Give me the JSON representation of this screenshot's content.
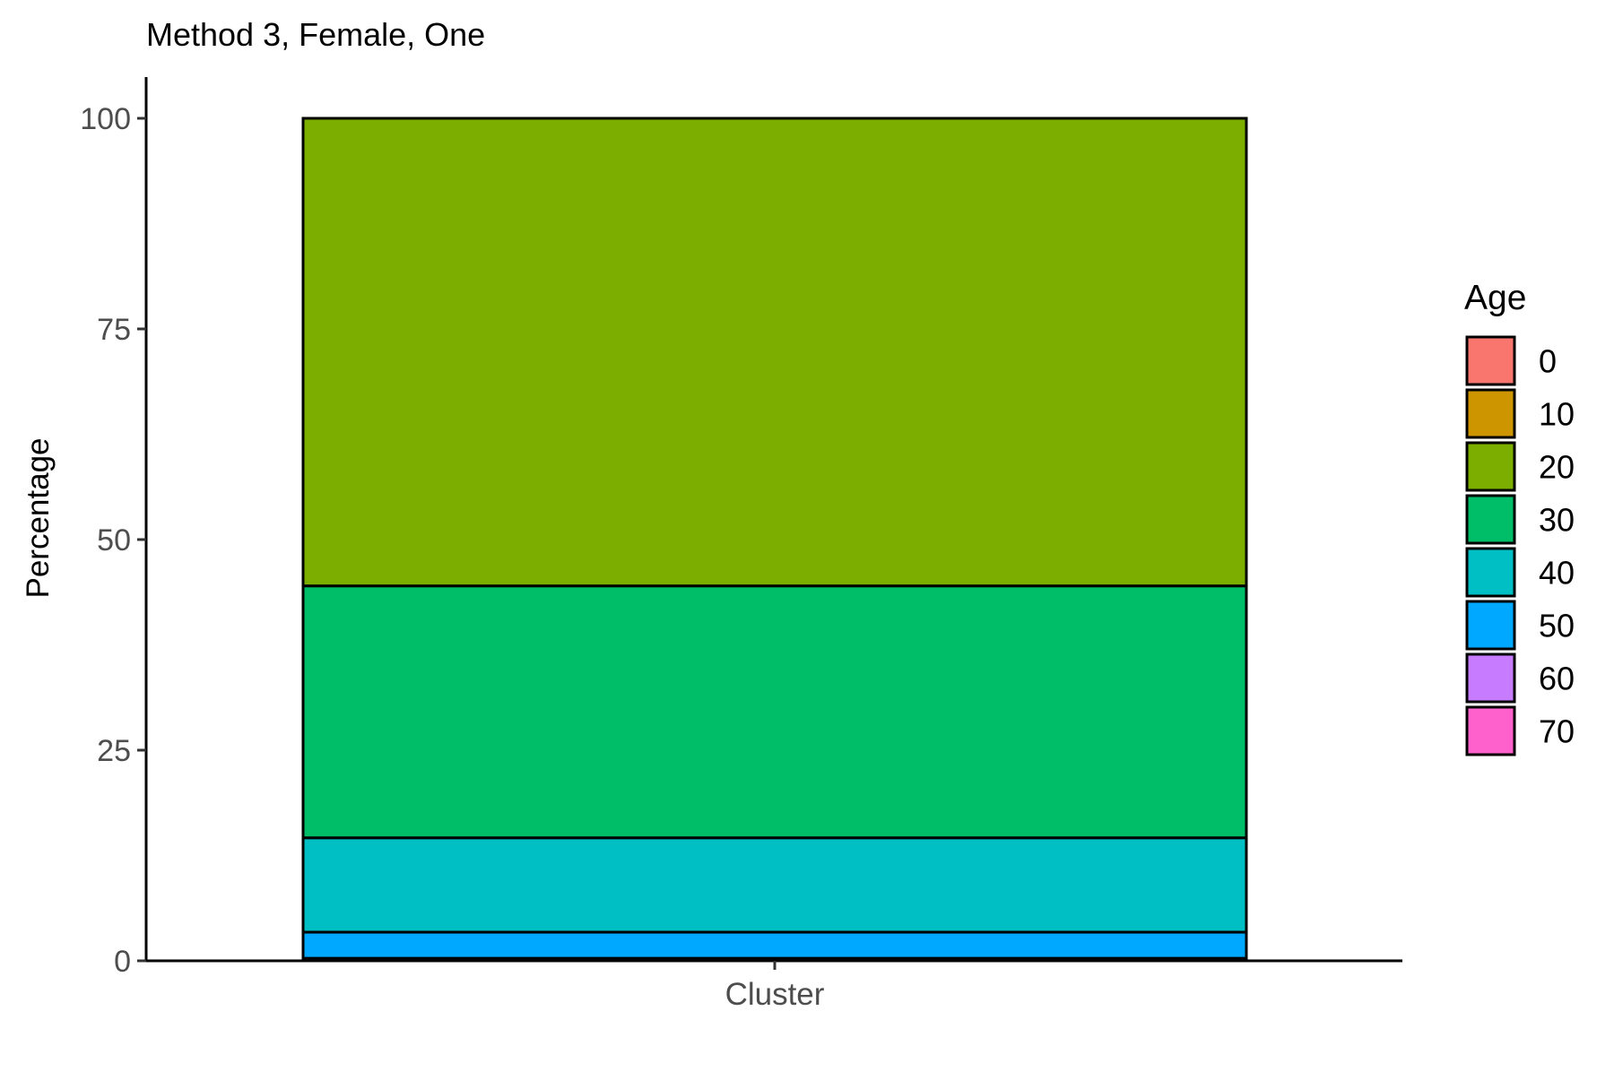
{
  "chart_data": {
    "type": "bar",
    "stacked": true,
    "title": "Method 3, Female, One",
    "xlabel": "",
    "ylabel": "Percentage",
    "categories": [
      "Cluster"
    ],
    "ylim": [
      0,
      100
    ],
    "yticks": [
      0,
      25,
      50,
      75,
      100
    ],
    "grid": false,
    "legend": {
      "title": "Age",
      "placement": "right",
      "entries": [
        {
          "label": "0",
          "color": "#F8766D"
        },
        {
          "label": "10",
          "color": "#CD9600"
        },
        {
          "label": "20",
          "color": "#7CAE00"
        },
        {
          "label": "30",
          "color": "#00BE67"
        },
        {
          "label": "40",
          "color": "#00BFC4"
        },
        {
          "label": "50",
          "color": "#00A9FF"
        },
        {
          "label": "60",
          "color": "#C77CFF"
        },
        {
          "label": "70",
          "color": "#FF61CC"
        }
      ]
    },
    "series": [
      {
        "name": "0",
        "color": "#F8766D",
        "values": [
          0
        ]
      },
      {
        "name": "10",
        "color": "#CD9600",
        "values": [
          0
        ]
      },
      {
        "name": "20",
        "color": "#7CAE00",
        "values": [
          55.5
        ]
      },
      {
        "name": "30",
        "color": "#00BE67",
        "values": [
          29.9
        ]
      },
      {
        "name": "40",
        "color": "#00BFC4",
        "values": [
          11.2
        ]
      },
      {
        "name": "50",
        "color": "#00A9FF",
        "values": [
          3.1
        ]
      },
      {
        "name": "60",
        "color": "#C77CFF",
        "values": [
          0.3
        ]
      },
      {
        "name": "70",
        "color": "#FF61CC",
        "values": [
          0
        ]
      }
    ]
  }
}
